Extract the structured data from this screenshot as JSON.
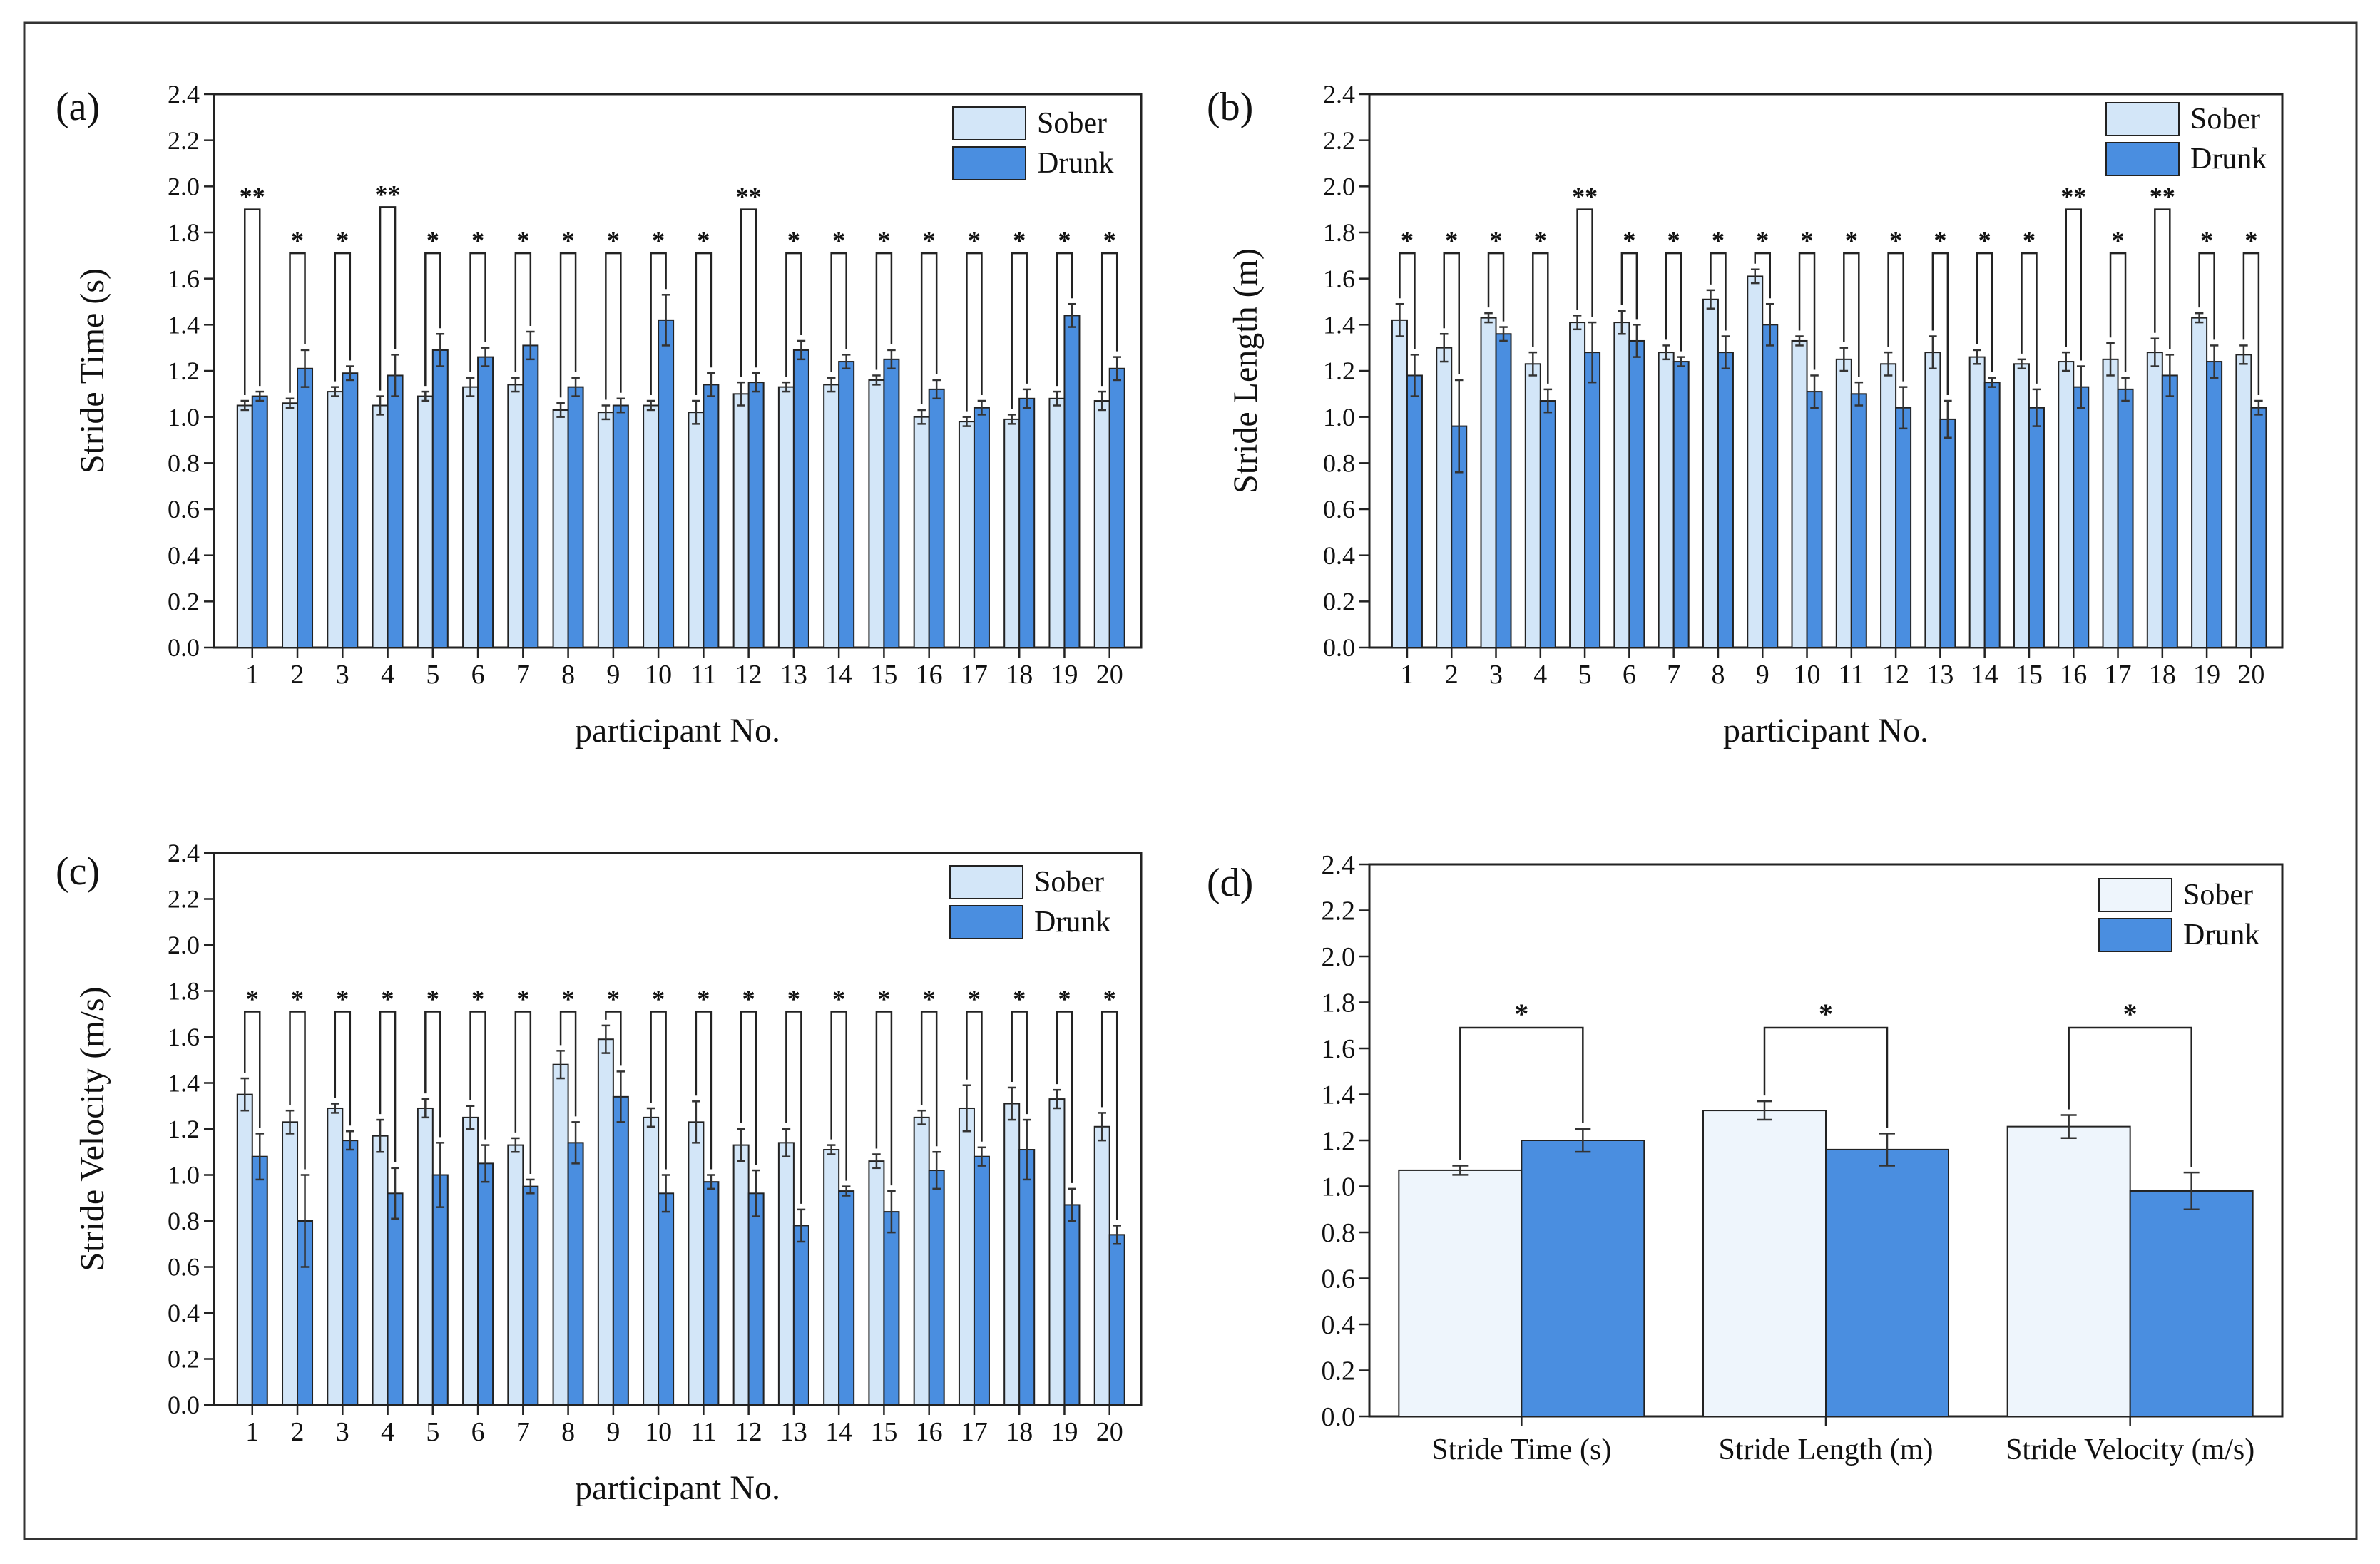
{
  "colors": {
    "sober": "#d3e6f8",
    "sober_d": "#eef5fc",
    "drunk": "#4a8ee0",
    "axis": "#222222",
    "err": "#333333"
  },
  "legend": {
    "sober": "Sober",
    "drunk": "Drunk"
  },
  "chart_data": [
    {
      "id": "a",
      "panel_label": "(a)",
      "type": "bar",
      "ylabel": "Stride Time (s)",
      "xlabel": "participant No.",
      "ylim": [
        0,
        2.4
      ],
      "yticks": [
        "0.0",
        "0.2",
        "0.4",
        "0.6",
        "0.8",
        "1.0",
        "1.2",
        "1.4",
        "1.6",
        "1.8",
        "2.0",
        "2.2",
        "2.4"
      ],
      "categories": [
        "1",
        "2",
        "3",
        "4",
        "5",
        "6",
        "7",
        "8",
        "9",
        "10",
        "11",
        "12",
        "13",
        "14",
        "15",
        "16",
        "17",
        "18",
        "19",
        "20"
      ],
      "series": [
        {
          "name": "Sober",
          "values": [
            1.05,
            1.06,
            1.11,
            1.05,
            1.09,
            1.13,
            1.14,
            1.03,
            1.02,
            1.05,
            1.02,
            1.1,
            1.13,
            1.14,
            1.16,
            1.0,
            0.98,
            0.99,
            1.08,
            1.07
          ],
          "errors": [
            0.02,
            0.02,
            0.02,
            0.04,
            0.02,
            0.04,
            0.03,
            0.03,
            0.03,
            0.02,
            0.05,
            0.05,
            0.02,
            0.03,
            0.02,
            0.03,
            0.02,
            0.02,
            0.03,
            0.04
          ]
        },
        {
          "name": "Drunk",
          "values": [
            1.09,
            1.21,
            1.19,
            1.18,
            1.29,
            1.26,
            1.31,
            1.13,
            1.05,
            1.42,
            1.14,
            1.15,
            1.29,
            1.24,
            1.25,
            1.12,
            1.04,
            1.08,
            1.44,
            1.21
          ],
          "errors": [
            0.02,
            0.08,
            0.03,
            0.09,
            0.07,
            0.04,
            0.06,
            0.04,
            0.03,
            0.11,
            0.05,
            0.04,
            0.04,
            0.03,
            0.04,
            0.04,
            0.03,
            0.04,
            0.05,
            0.05
          ]
        }
      ],
      "significance": [
        "**",
        "*",
        "*",
        "**",
        "*",
        "*",
        "*",
        "*",
        "*",
        "*",
        "*",
        "**",
        "*",
        "*",
        "*",
        "*",
        "*",
        "*",
        "*",
        "*"
      ],
      "bracket_y": [
        1.9,
        1.71,
        1.71,
        1.91,
        1.71,
        1.71,
        1.71,
        1.71,
        1.71,
        1.71,
        1.71,
        1.9,
        1.71,
        1.71,
        1.71,
        1.71,
        1.71,
        1.71,
        1.71,
        1.71
      ]
    },
    {
      "id": "b",
      "panel_label": "(b)",
      "type": "bar",
      "ylabel": "Stride Length (m)",
      "xlabel": "participant No.",
      "ylim": [
        0,
        2.4
      ],
      "yticks": [
        "0.0",
        "0.2",
        "0.4",
        "0.6",
        "0.8",
        "1.0",
        "1.2",
        "1.4",
        "1.6",
        "1.8",
        "2.0",
        "2.2",
        "2.4"
      ],
      "categories": [
        "1",
        "2",
        "3",
        "4",
        "5",
        "6",
        "7",
        "8",
        "9",
        "10",
        "11",
        "12",
        "13",
        "14",
        "15",
        "16",
        "17",
        "18",
        "19",
        "20"
      ],
      "series": [
        {
          "name": "Sober",
          "values": [
            1.42,
            1.3,
            1.43,
            1.23,
            1.41,
            1.41,
            1.28,
            1.51,
            1.61,
            1.33,
            1.25,
            1.23,
            1.28,
            1.26,
            1.23,
            1.24,
            1.25,
            1.28,
            1.43,
            1.27
          ],
          "errors": [
            0.07,
            0.06,
            0.02,
            0.05,
            0.03,
            0.05,
            0.03,
            0.04,
            0.03,
            0.02,
            0.05,
            0.05,
            0.07,
            0.03,
            0.02,
            0.04,
            0.07,
            0.06,
            0.02,
            0.04
          ]
        },
        {
          "name": "Drunk",
          "values": [
            1.18,
            0.96,
            1.36,
            1.07,
            1.28,
            1.33,
            1.24,
            1.28,
            1.4,
            1.11,
            1.1,
            1.04,
            0.99,
            1.15,
            1.04,
            1.13,
            1.12,
            1.18,
            1.24,
            1.04
          ],
          "errors": [
            0.09,
            0.2,
            0.03,
            0.05,
            0.13,
            0.07,
            0.02,
            0.07,
            0.09,
            0.07,
            0.05,
            0.09,
            0.08,
            0.02,
            0.08,
            0.09,
            0.05,
            0.09,
            0.07,
            0.03
          ]
        }
      ],
      "significance": [
        "*",
        "*",
        "*",
        "*",
        "**",
        "*",
        "*",
        "*",
        "*",
        "*",
        "*",
        "*",
        "*",
        "*",
        "*",
        "**",
        "*",
        "**",
        "*",
        "*"
      ],
      "bracket_y": [
        1.71,
        1.71,
        1.71,
        1.71,
        1.9,
        1.71,
        1.71,
        1.71,
        1.71,
        1.71,
        1.71,
        1.71,
        1.71,
        1.71,
        1.71,
        1.9,
        1.71,
        1.9,
        1.71,
        1.71
      ]
    },
    {
      "id": "c",
      "panel_label": "(c)",
      "type": "bar",
      "ylabel": "Stride Velocity (m/s)",
      "xlabel": "participant No.",
      "ylim": [
        0,
        2.4
      ],
      "yticks": [
        "0.0",
        "0.2",
        "0.4",
        "0.6",
        "0.8",
        "1.0",
        "1.2",
        "1.4",
        "1.6",
        "1.8",
        "2.0",
        "2.2",
        "2.4"
      ],
      "categories": [
        "1",
        "2",
        "3",
        "4",
        "5",
        "6",
        "7",
        "8",
        "9",
        "10",
        "11",
        "12",
        "13",
        "14",
        "15",
        "16",
        "17",
        "18",
        "19",
        "20"
      ],
      "series": [
        {
          "name": "Sober",
          "values": [
            1.35,
            1.23,
            1.29,
            1.17,
            1.29,
            1.25,
            1.13,
            1.48,
            1.59,
            1.25,
            1.23,
            1.13,
            1.14,
            1.11,
            1.06,
            1.25,
            1.29,
            1.31,
            1.33,
            1.21
          ],
          "errors": [
            0.07,
            0.05,
            0.02,
            0.07,
            0.04,
            0.05,
            0.03,
            0.06,
            0.06,
            0.04,
            0.09,
            0.07,
            0.06,
            0.02,
            0.03,
            0.03,
            0.1,
            0.07,
            0.04,
            0.06
          ]
        },
        {
          "name": "Drunk",
          "values": [
            1.08,
            0.8,
            1.15,
            0.92,
            1.0,
            1.05,
            0.95,
            1.14,
            1.34,
            0.92,
            0.97,
            0.92,
            0.78,
            0.93,
            0.84,
            1.02,
            1.08,
            1.11,
            0.87,
            0.74
          ],
          "errors": [
            0.1,
            0.2,
            0.04,
            0.11,
            0.14,
            0.08,
            0.03,
            0.09,
            0.11,
            0.08,
            0.03,
            0.1,
            0.07,
            0.02,
            0.09,
            0.08,
            0.04,
            0.13,
            0.07,
            0.04
          ]
        }
      ],
      "significance": [
        "*",
        "*",
        "*",
        "*",
        "*",
        "*",
        "*",
        "*",
        "*",
        "*",
        "*",
        "*",
        "*",
        "*",
        "*",
        "*",
        "*",
        "*",
        "*",
        "*"
      ],
      "bracket_y": [
        1.71,
        1.71,
        1.71,
        1.71,
        1.71,
        1.71,
        1.71,
        1.71,
        1.71,
        1.71,
        1.71,
        1.71,
        1.71,
        1.71,
        1.71,
        1.71,
        1.71,
        1.71,
        1.71,
        1.71
      ]
    },
    {
      "id": "d",
      "panel_label": "(d)",
      "type": "bar",
      "ylabel": "",
      "xlabel": "",
      "ylim": [
        0,
        2.4
      ],
      "yticks": [
        "0.0",
        "0.2",
        "0.4",
        "0.6",
        "0.8",
        "1.0",
        "1.2",
        "1.4",
        "1.6",
        "1.8",
        "2.0",
        "2.2",
        "2.4"
      ],
      "categories": [
        "Stride Time (s)",
        "Stride Length (m)",
        "Stride Velocity (m/s)"
      ],
      "series": [
        {
          "name": "Sober",
          "values": [
            1.07,
            1.33,
            1.26
          ],
          "errors": [
            0.02,
            0.04,
            0.05
          ]
        },
        {
          "name": "Drunk",
          "values": [
            1.2,
            1.16,
            0.98
          ],
          "errors": [
            0.05,
            0.07,
            0.08
          ]
        }
      ],
      "significance": [
        "*",
        "*",
        "*"
      ],
      "bracket_y": [
        1.69,
        1.69,
        1.69
      ]
    }
  ]
}
